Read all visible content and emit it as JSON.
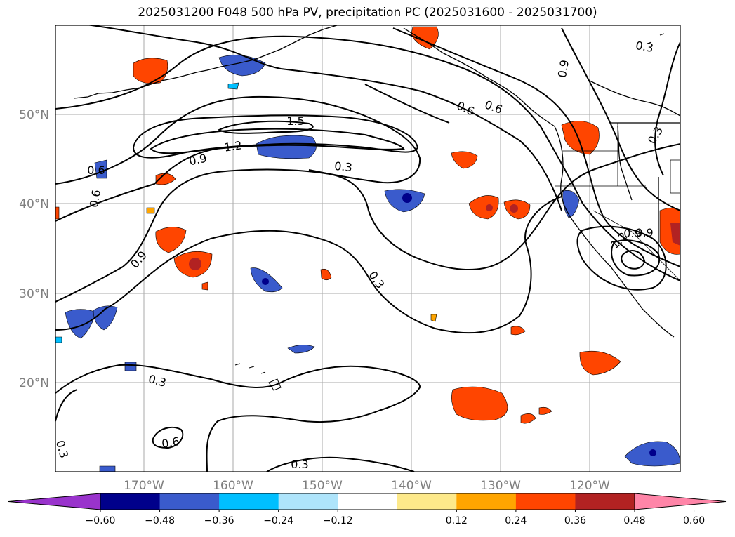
{
  "title": "2025031200 F048 500 hPa PV, precipitation PC (2025031600 - 2025031700)",
  "lat_labels": [
    "50°N",
    "40°N",
    "30°N",
    "20°N"
  ],
  "lon_labels": [
    "170°W",
    "160°W",
    "150°W",
    "140°W",
    "130°W",
    "120°W"
  ],
  "contour_labels": [
    "1.5",
    "1.2",
    "0.9",
    "0.3",
    "0.6",
    "0.6",
    "0.9",
    "0.6",
    "0.3",
    "0.3",
    "0.3",
    "0.6",
    "0.3",
    "0.3",
    "0.9",
    "0.6",
    "0.9",
    "0.3",
    "0.9",
    "1.2"
  ],
  "colorbar": {
    "ticks": [
      "−0.60",
      "−0.48",
      "−0.36",
      "−0.24",
      "−0.12",
      "0.12",
      "0.24",
      "0.36",
      "0.48",
      "0.60"
    ],
    "colors": [
      "#9933cc",
      "#00008b",
      "#3a5bcc",
      "#00bfff",
      "#aee4fb",
      "#ffffff",
      "#fde98a",
      "#ffa500",
      "#ff4500",
      "#b22222",
      "#ff85a8"
    ]
  }
}
